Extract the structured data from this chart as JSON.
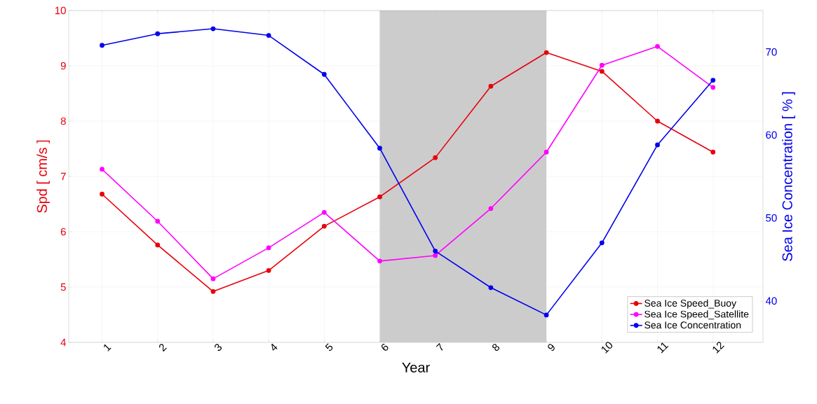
{
  "chart_data": {
    "type": "line",
    "xlabel": "Year",
    "ylabel": "Spd [ cm/s ]",
    "y2label": "Sea Ice Concentration [ % ]",
    "x": [
      1,
      2,
      3,
      4,
      5,
      6,
      7,
      8,
      9,
      10,
      11,
      12
    ],
    "xlim": [
      0.4,
      12.9
    ],
    "xticks": [
      1,
      2,
      3,
      4,
      5,
      6,
      7,
      8,
      9,
      10,
      11,
      12
    ],
    "ylim": [
      4,
      10
    ],
    "yticks": [
      4,
      5,
      6,
      7,
      8,
      9,
      10
    ],
    "y2lim": [
      35,
      75
    ],
    "y2ticks": [
      40,
      50,
      60,
      70
    ],
    "series": [
      {
        "name": "Sea Ice Speed_Buoy",
        "color": "#e8000b",
        "values": [
          6.68,
          5.76,
          4.92,
          5.3,
          6.1,
          6.63,
          7.34,
          8.63,
          9.24,
          8.9,
          8.0,
          7.44
        ]
      },
      {
        "name": "Sea Ice Speed_Satellite",
        "color": "#ff00ff",
        "values": [
          7.13,
          6.19,
          5.15,
          5.71,
          6.35,
          5.47,
          5.57,
          6.42,
          7.44,
          9.01,
          9.35,
          8.61
        ]
      },
      {
        "name": "Sea Ice Concentration",
        "color": "#0000ee",
        "axis": "y2",
        "values": [
          70.8,
          72.2,
          72.8,
          72.0,
          67.3,
          58.4,
          46.0,
          41.6,
          38.3,
          47.0,
          58.8,
          66.6
        ]
      }
    ],
    "bands": [
      {
        "axis": "x",
        "from": 6,
        "to": 9,
        "color": "#cccccc"
      }
    ],
    "grid": true,
    "legend": "bottom right",
    "marker": "circle",
    "line_style": "solid"
  }
}
